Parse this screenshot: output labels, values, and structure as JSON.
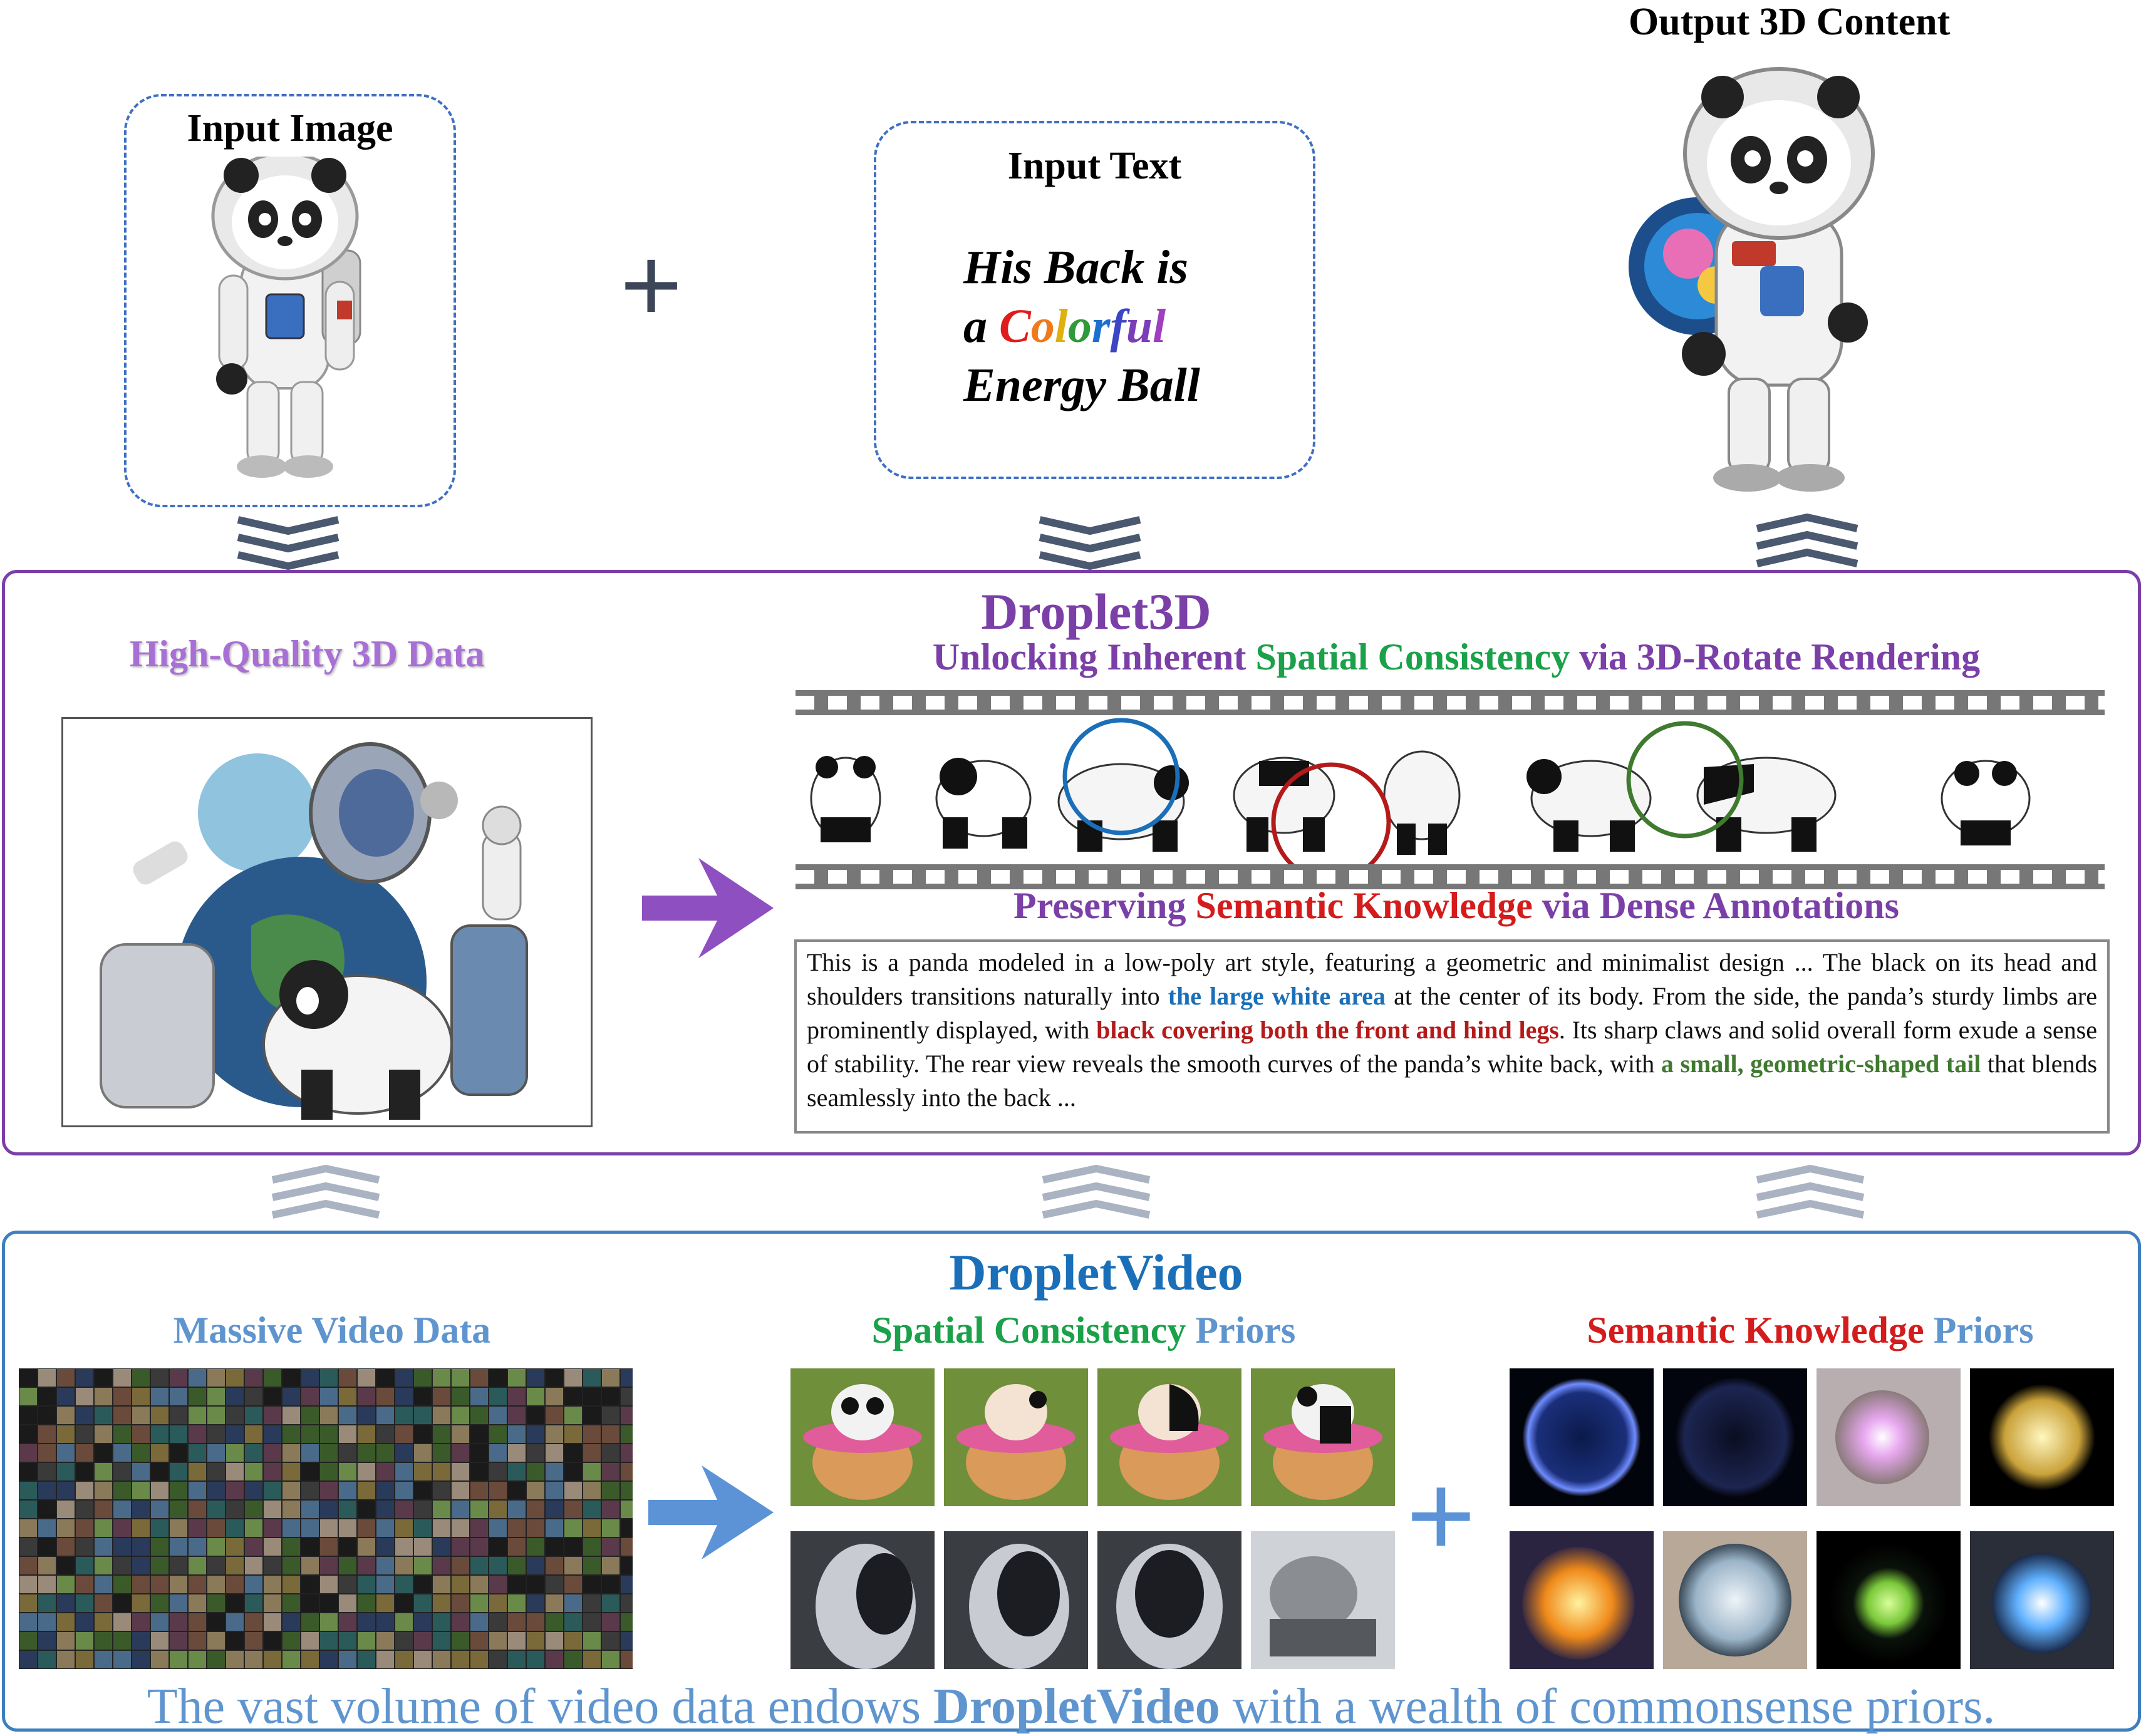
{
  "colors": {
    "purple": "#7b3fa8",
    "green": "#1aa14a",
    "red": "#d41c1c",
    "blue": "#1a6fb8",
    "light_blue": "#5f95cf",
    "dark_red": "#b51a1a",
    "dark_green": "#3f7a2f",
    "arrow_purple": "#8e4fc0",
    "arrow_blue": "#5b93d6"
  },
  "top": {
    "input_image_label": "Input Image",
    "plus_symbol": "+",
    "input_text_label": "Input Text",
    "input_text_line1": "His Back is",
    "input_text_line2_prefix": "a ",
    "colorful_letters": [
      {
        "ch": "C",
        "color": "#e01b1b"
      },
      {
        "ch": "o",
        "color": "#f07a1a"
      },
      {
        "ch": "l",
        "color": "#e0b010"
      },
      {
        "ch": "o",
        "color": "#2f9a3a"
      },
      {
        "ch": "r",
        "color": "#1a6fd1"
      },
      {
        "ch": "f",
        "color": "#3b46c4"
      },
      {
        "ch": "u",
        "color": "#7a3fb8"
      },
      {
        "ch": "l",
        "color": "#a03ec0"
      }
    ],
    "input_text_line3": "Energy Ball",
    "output_label": "Output 3D Content"
  },
  "droplet3d": {
    "title": "Droplet3D",
    "data_label": "High-Quality 3D Data",
    "subtitle1_part1": "Unlocking Inherent ",
    "subtitle1_part2": "Spatial Consistency",
    "subtitle1_part3": " via 3D-Rotate Rendering",
    "subtitle2_part1": "Preserving ",
    "subtitle2_part2": "Semantic Knowledge",
    "subtitle2_part3": " via Dense Annotations",
    "desc_p1": "This is a panda modeled in a low-poly art style, featuring a geometric and minimalist design ... The black on its head and shoulders transitions naturally into ",
    "desc_h1": "the large white area",
    "desc_p2": " at the center of its body. From the side, the panda’s sturdy limbs are prominently displayed, with ",
    "desc_h2": "black covering both the front and hind legs",
    "desc_p3": ". Its sharp claws and solid overall form exude a sense of stability. The rear view reveals the smooth curves of the panda’s white back, with ",
    "desc_h3": "a small, geometric-shaped tail",
    "desc_p4": " that blends seamlessly into the back ..."
  },
  "dropletvideo": {
    "title": "DropletVideo",
    "massive_label": "Massive Video Data",
    "spatial_part1": "Spatial Consistency",
    "spatial_part2": " Priors",
    "semantic_part1": "Semantic Knowledge",
    "semantic_part2": " Priors",
    "plus_symbol": "+",
    "caption_part1": "The vast volume of video data endows ",
    "caption_bold": "DropletVideo",
    "caption_part2": " with a wealth of commonsense priors."
  }
}
